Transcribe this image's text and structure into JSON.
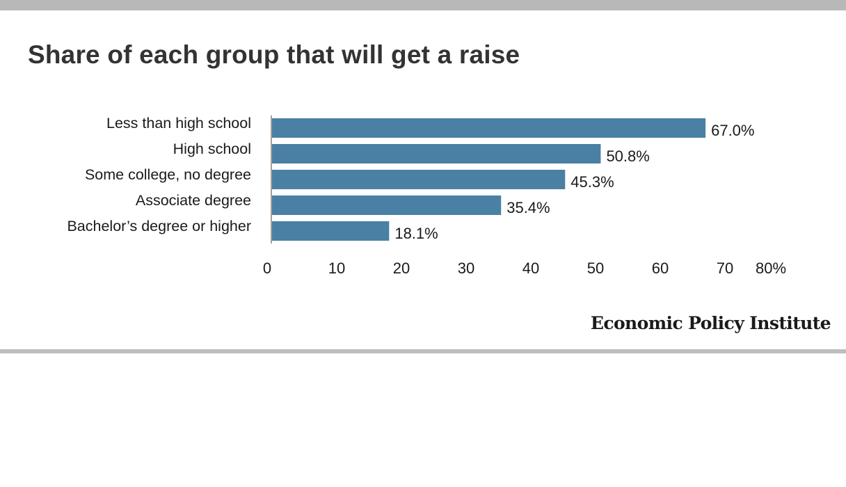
{
  "title": "Share of each group that will get a raise",
  "source": "Economic Policy Institute",
  "colors": {
    "bar": "#4a80a4",
    "axis": "#a89f97",
    "label": "#1a1a1a",
    "title": "#333333",
    "rule": "#b8b8b8"
  },
  "chart_data": {
    "type": "bar",
    "orientation": "horizontal",
    "title": "Share of each group that will get a raise",
    "categories": [
      "Less than high school",
      "High school",
      "Some college, no degree",
      "Associate degree",
      "Bachelor’s degree or higher"
    ],
    "values": [
      67.0,
      50.8,
      45.3,
      35.4,
      18.1
    ],
    "value_labels": [
      "67.0%",
      "50.8%",
      "45.3%",
      "35.4%",
      "18.1%"
    ],
    "xlim": [
      0,
      80
    ],
    "ticks": [
      0,
      10,
      20,
      30,
      40,
      50,
      60,
      70,
      80
    ],
    "tick_labels": [
      "0",
      "10",
      "20",
      "30",
      "40",
      "50",
      "60",
      "70",
      "80%"
    ],
    "grid": false,
    "legend": "none"
  }
}
